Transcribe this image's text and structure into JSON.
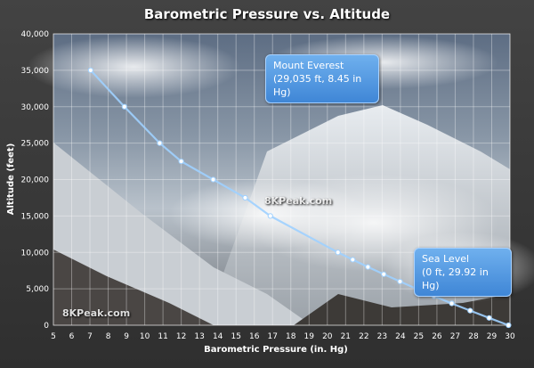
{
  "chart_data": {
    "type": "line",
    "title": "Barometric Pressure vs. Altitude",
    "xlabel": "Barometric Pressure  (in. Hg)",
    "ylabel": "Altitude  (feet)",
    "xlim": [
      5,
      30
    ],
    "ylim": [
      0,
      40000
    ],
    "xticks": [
      5,
      6,
      7,
      8,
      9,
      10,
      11,
      12,
      13,
      14,
      15,
      16,
      17,
      18,
      19,
      20,
      21,
      22,
      23,
      24,
      25,
      26,
      27,
      28,
      29,
      30
    ],
    "yticks": [
      0,
      5000,
      10000,
      15000,
      20000,
      25000,
      30000,
      35000,
      40000
    ],
    "ytick_labels": [
      "0",
      "5,000",
      "10,000",
      "15,000",
      "20,000",
      "25,000",
      "30,000",
      "35,000",
      "40,000"
    ],
    "grid": true,
    "series": [
      {
        "color": "#9fd0ff",
        "x": [
          7.04,
          8.89,
          10.82,
          12.0,
          13.75,
          15.5,
          16.88,
          20.58,
          21.39,
          22.22,
          23.09,
          23.98,
          24.89,
          25.84,
          26.81,
          27.82,
          28.86,
          29.92
        ],
        "y": [
          35000,
          30000,
          25000,
          22500,
          20000,
          17500,
          15000,
          10000,
          9000,
          8000,
          7000,
          6000,
          5000,
          4000,
          3000,
          2000,
          1000,
          0
        ]
      }
    ],
    "annotations": [
      {
        "line1": "Mount Everest",
        "line2": "(29,035 ft, 8.45 in Hg)"
      },
      {
        "line1": "Sea Level",
        "line2": "(0 ft, 29.92 in Hg)"
      }
    ],
    "watermarks": [
      "8KPeak.com",
      "8KPeak.com"
    ]
  }
}
